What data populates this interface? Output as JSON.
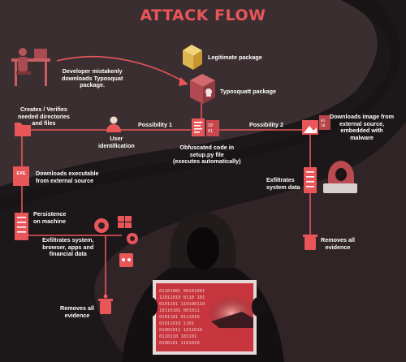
{
  "title": "ATTACK FLOW",
  "colors": {
    "accent": "#e9565a",
    "accent_dark": "#b8444a",
    "background": "#1a1516",
    "text": "#ffffff"
  },
  "labels": {
    "developer": [
      "Developer mistakenly",
      "downloads Typosquat",
      "package."
    ],
    "legit_package": "Legitimate package",
    "typosquat_package": "Typosquatt package",
    "creates_dirs": [
      "Creates / Verifies",
      "needed directories",
      "and files"
    ],
    "user_identification": [
      "User",
      "identification"
    ],
    "possibility_1": "Possibility 1",
    "possibility_2": "Possibility 2",
    "obfuscated_code": [
      "Obfuscated code in",
      "setup.py file",
      "(executes automatically)"
    ],
    "downloads_image": [
      "Downloads image from",
      "external source,",
      "embedded with",
      "malware"
    ],
    "downloads_executable": [
      "Downloads executable",
      "from external source"
    ],
    "exfiltrates_system_data": [
      "Exfiltrates",
      "system data"
    ],
    "persistence": [
      "Persistence",
      "on machine"
    ],
    "removes_evidence_right": [
      "Removes all",
      "evidence"
    ],
    "exfiltrates_financial": [
      "Exfiltrates system,",
      "browser, apps and",
      "financial data"
    ],
    "removes_evidence_left": [
      "Removes all",
      "evidence"
    ],
    "exe_tag": ".EXE"
  },
  "icons": [
    "developer-at-desk-icon",
    "legit-package-icon",
    "typosquat-package-icon",
    "folder-icon",
    "user-icon",
    "code-file-icon",
    "image-file-icon",
    "exe-file-icon",
    "server-icon",
    "hooded-hacker-icon",
    "trash-bin-icon",
    "windows-logo-icon",
    "browser-icon",
    "apps-icon",
    "hooded-figure-image"
  ],
  "binary_text": "01101001 00101001 11011010 0110 1011101 0101101 11010011 01010 10110101 001011 0101101 0111010 01011010 1101 01001011 1011010 0110110 101101 0100101 1101010"
}
